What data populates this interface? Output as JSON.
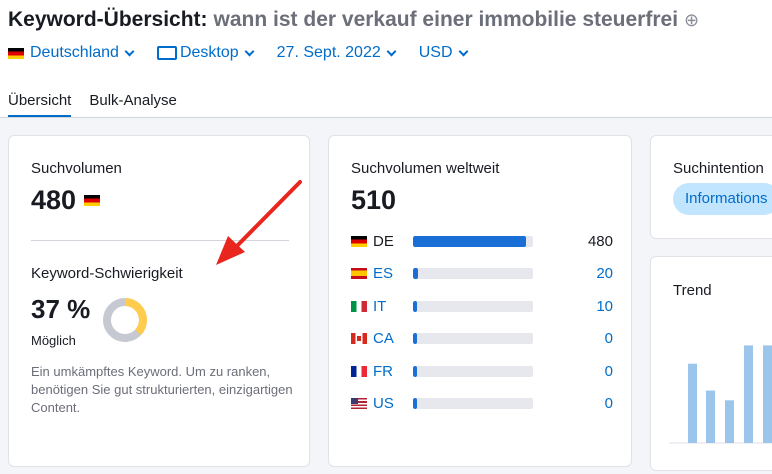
{
  "header": {
    "title": "Keyword-Übersicht:",
    "keyword": "wann ist der verkauf einer immobilie steuerfrei",
    "add_icon": "plus-circle-icon"
  },
  "filters": {
    "country": "Deutschland",
    "device": "Desktop",
    "date": "27. Sept. 2022",
    "currency": "USD"
  },
  "tabs": [
    {
      "label": "Übersicht",
      "active": true
    },
    {
      "label": "Bulk-Analyse",
      "active": false
    }
  ],
  "volume_card": {
    "label": "Suchvolumen",
    "value": "480",
    "difficulty_label": "Keyword-Schwierigkeit",
    "difficulty_value": "37 %",
    "difficulty_percent": 37,
    "difficulty_text": "Möglich",
    "description": "Ein umkämpftes Keyword. Um zu ranken, benötigen Sie gut strukturierten, einzigartigen Content.",
    "donut_color": "#ffcc4d",
    "donut_track_color": "#c6c9d1"
  },
  "global_card": {
    "label": "Suchvolumen weltweit",
    "value": "510",
    "max": 480,
    "countries": [
      {
        "code": "DE",
        "value": 480,
        "value_label": "480",
        "flag": "flag-de"
      },
      {
        "code": "ES",
        "value": 20,
        "value_label": "20",
        "flag": "flag-es"
      },
      {
        "code": "IT",
        "value": 10,
        "value_label": "10",
        "flag": "flag-it"
      },
      {
        "code": "CA",
        "value": 0,
        "value_label": "0",
        "flag": "flag-ca"
      },
      {
        "code": "FR",
        "value": 0,
        "value_label": "0",
        "flag": "flag-fr"
      },
      {
        "code": "US",
        "value": 0,
        "value_label": "0",
        "flag": "flag-us"
      }
    ]
  },
  "intent_card": {
    "label": "Suchintention",
    "badge": "Informations"
  },
  "trend_card": {
    "label": "Trend",
    "bar_color": "#9bc5ea",
    "values": [
      0.65,
      0.43,
      0.35,
      0.8,
      0.8
    ]
  },
  "colors": {
    "accent": "#006dca",
    "bar_fill": "#1a6fd6",
    "arrow": "#e8261e"
  }
}
